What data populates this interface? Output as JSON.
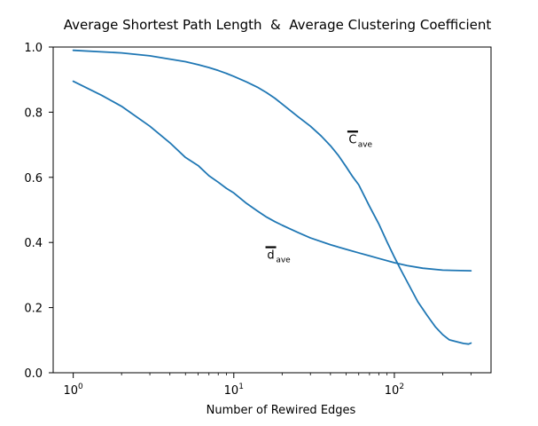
{
  "chart_data": {
    "type": "line",
    "title": "Average Shortest Path Length  &  Average Clustering Coefficient",
    "xlabel": "Number of Rewired Edges",
    "ylabel": "",
    "x_scale": "log",
    "xlim": [
      0.75,
      400
    ],
    "ylim": [
      0.0,
      1.0
    ],
    "grid": false,
    "xticks": [
      {
        "value": 1,
        "base": "10",
        "exp": "0"
      },
      {
        "value": 10,
        "base": "10",
        "exp": "1"
      },
      {
        "value": 100,
        "base": "10",
        "exp": "2"
      }
    ],
    "yticks": [
      0.0,
      0.2,
      0.4,
      0.6,
      0.8,
      1.0
    ],
    "ytick_labels": [
      "0.0",
      "0.2",
      "0.4",
      "0.6",
      "0.8",
      "1.0"
    ],
    "line_color": "#1f77b4",
    "series": [
      {
        "annotation_main": "C",
        "annotation_sub": "ave",
        "annotation_x": 55,
        "annotation_y": 0.705,
        "points": [
          [
            1,
            0.99
          ],
          [
            2,
            0.982
          ],
          [
            3,
            0.973
          ],
          [
            4,
            0.963
          ],
          [
            5,
            0.955
          ],
          [
            6,
            0.946
          ],
          [
            7,
            0.937
          ],
          [
            8,
            0.928
          ],
          [
            9,
            0.919
          ],
          [
            10,
            0.91
          ],
          [
            12,
            0.893
          ],
          [
            14,
            0.877
          ],
          [
            16,
            0.86
          ],
          [
            18,
            0.843
          ],
          [
            20,
            0.825
          ],
          [
            25,
            0.787
          ],
          [
            30,
            0.757
          ],
          [
            35,
            0.727
          ],
          [
            40,
            0.697
          ],
          [
            45,
            0.666
          ],
          [
            50,
            0.633
          ],
          [
            55,
            0.602
          ],
          [
            60,
            0.577
          ],
          [
            70,
            0.511
          ],
          [
            80,
            0.457
          ],
          [
            90,
            0.402
          ],
          [
            100,
            0.355
          ],
          [
            110,
            0.315
          ],
          [
            120,
            0.28
          ],
          [
            140,
            0.218
          ],
          [
            160,
            0.176
          ],
          [
            180,
            0.141
          ],
          [
            200,
            0.117
          ],
          [
            220,
            0.101
          ],
          [
            250,
            0.094
          ],
          [
            270,
            0.09
          ],
          [
            290,
            0.088
          ],
          [
            300,
            0.091
          ]
        ]
      },
      {
        "annotation_main": "d",
        "annotation_sub": "ave",
        "annotation_x": 17,
        "annotation_y": 0.35,
        "points": [
          [
            1,
            0.895
          ],
          [
            1.5,
            0.852
          ],
          [
            2,
            0.818
          ],
          [
            3,
            0.757
          ],
          [
            4,
            0.706
          ],
          [
            5,
            0.661
          ],
          [
            6,
            0.636
          ],
          [
            7,
            0.605
          ],
          [
            8,
            0.585
          ],
          [
            9,
            0.566
          ],
          [
            10,
            0.552
          ],
          [
            12,
            0.52
          ],
          [
            14,
            0.497
          ],
          [
            16,
            0.478
          ],
          [
            18,
            0.464
          ],
          [
            20,
            0.453
          ],
          [
            25,
            0.431
          ],
          [
            30,
            0.414
          ],
          [
            40,
            0.393
          ],
          [
            50,
            0.379
          ],
          [
            60,
            0.368
          ],
          [
            70,
            0.359
          ],
          [
            80,
            0.351
          ],
          [
            100,
            0.338
          ],
          [
            120,
            0.329
          ],
          [
            150,
            0.321
          ],
          [
            200,
            0.315
          ],
          [
            300,
            0.313
          ]
        ]
      }
    ]
  }
}
